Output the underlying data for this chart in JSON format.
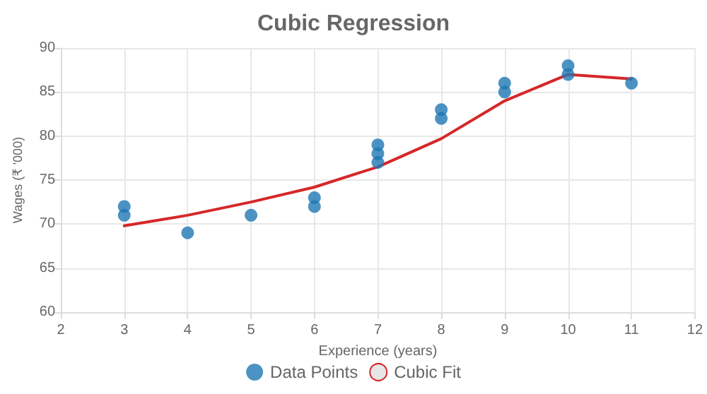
{
  "chart_data": {
    "type": "scatter",
    "title": "Cubic Regression",
    "xlabel": "Experience (years)",
    "ylabel": "Wages (₹ '000)",
    "xlim": [
      2,
      12
    ],
    "xticks": [
      2,
      3,
      4,
      5,
      6,
      7,
      8,
      9,
      10,
      11,
      12
    ],
    "ylim": [
      60,
      90
    ],
    "yticks": [
      60,
      65,
      70,
      75,
      80,
      85,
      90
    ],
    "grid": true,
    "legend": "bottom",
    "series": [
      {
        "name": "Data Points",
        "marker": "circle",
        "color": "#1f77b4",
        "x": [
          3,
          3,
          4,
          5,
          6,
          6,
          7,
          7,
          7,
          8,
          8,
          9,
          9,
          10,
          10,
          11
        ],
        "values": [
          71,
          72,
          69,
          71,
          72,
          73,
          77,
          78,
          79,
          82,
          83,
          85,
          86,
          87,
          88,
          86
        ]
      },
      {
        "name": "Cubic Fit",
        "type": "line",
        "marker": "none",
        "line_style": "solid",
        "color": "#d62728",
        "x": [
          3,
          4,
          5,
          6,
          7,
          8,
          9,
          10,
          11
        ],
        "values": [
          69.8,
          71,
          72.5,
          74.2,
          76.5,
          79.7,
          84,
          87,
          86.5
        ]
      }
    ]
  }
}
